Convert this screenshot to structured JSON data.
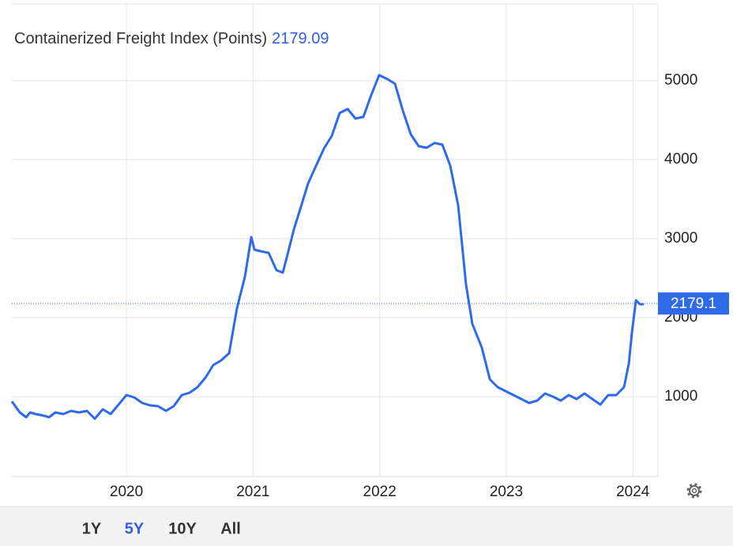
{
  "chart_data": {
    "type": "line",
    "title": "Containerized Freight Index (Points)",
    "current_value": 2179.09,
    "current_value_label": "2179.1",
    "x": [
      2019.095,
      2019.158,
      2019.208,
      2019.239,
      2019.283,
      2019.345,
      2019.389,
      2019.439,
      2019.501,
      2019.563,
      2019.626,
      2019.688,
      2019.75,
      2019.813,
      2019.875,
      2019.938,
      2020.0,
      2020.062,
      2020.125,
      2020.187,
      2020.25,
      2020.312,
      2020.374,
      2020.437,
      2020.499,
      2020.561,
      2020.624,
      2020.686,
      2020.749,
      2020.811,
      2020.873,
      2020.936,
      2020.986,
      2021.011,
      2021.061,
      2021.123,
      2021.185,
      2021.235,
      2021.279,
      2021.323,
      2021.372,
      2021.435,
      2021.497,
      2021.56,
      2021.622,
      2021.684,
      2021.747,
      2021.809,
      2021.871,
      2021.934,
      2021.996,
      2022.059,
      2022.121,
      2022.183,
      2022.246,
      2022.308,
      2022.371,
      2022.433,
      2022.495,
      2022.558,
      2022.62,
      2022.682,
      2022.732,
      2022.807,
      2022.87,
      2022.932,
      2022.994,
      2023.057,
      2023.119,
      2023.181,
      2023.244,
      2023.306,
      2023.369,
      2023.431,
      2023.493,
      2023.555,
      2023.618,
      2023.68,
      2023.743,
      2023.805,
      2023.868,
      2023.93,
      2023.968,
      2023.993,
      2024.024,
      2024.055,
      2024.086
    ],
    "series": [
      {
        "name": "Containerized Freight Index",
        "color": "#2f6be8",
        "values": [
          940,
          800,
          740,
          800,
          780,
          760,
          740,
          800,
          780,
          820,
          800,
          820,
          720,
          840,
          780,
          900,
          1020,
          990,
          920,
          890,
          880,
          820,
          880,
          1020,
          1050,
          1120,
          1240,
          1400,
          1460,
          1550,
          2120,
          2520,
          3020,
          2860,
          2840,
          2820,
          2600,
          2570,
          2840,
          3120,
          3370,
          3700,
          3920,
          4140,
          4300,
          4590,
          4640,
          4520,
          4540,
          4820,
          5070,
          5020,
          4960,
          4620,
          4320,
          4170,
          4150,
          4210,
          4190,
          3920,
          3420,
          2420,
          1920,
          1620,
          1220,
          1120,
          1070,
          1020,
          970,
          920,
          950,
          1040,
          1000,
          950,
          1020,
          970,
          1040,
          970,
          900,
          1020,
          1020,
          1120,
          1420,
          1820,
          2220,
          2170,
          2170
        ]
      }
    ],
    "xlim": [
      2019.095,
      2024.198
    ],
    "xticks": [
      2020,
      2021,
      2022,
      2023,
      2024
    ],
    "ylim": [
      0,
      5970
    ],
    "yticks": [
      1000,
      2000,
      3000,
      4000,
      5000
    ],
    "grid": true,
    "range_buttons": [
      "1Y",
      "5Y",
      "10Y",
      "All"
    ],
    "selected_range": "5Y"
  }
}
